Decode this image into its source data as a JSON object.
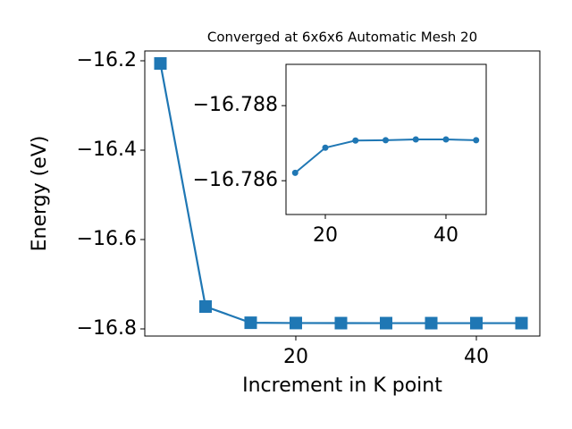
{
  "chart_data": [
    {
      "type": "line",
      "title": "Converged at 6x6x6 Automatic Mesh 20",
      "x_label": "Increment in K point",
      "y_label": "Energy (eV)",
      "x": [
        5,
        10,
        15,
        20,
        25,
        30,
        35,
        40,
        45
      ],
      "series": [
        {
          "name": "energy",
          "color": "#1f77b4",
          "marker": "square",
          "values": [
            -16.206,
            -16.75,
            -16.78621,
            -16.78688,
            -16.78707,
            -16.78708,
            -16.7871,
            -16.7871,
            -16.78708
          ]
        }
      ],
      "xlim": [
        3.27,
        47.03
      ],
      "ylim": [
        -16.816,
        -16.178
      ],
      "xticks": [
        20,
        40
      ],
      "yticks": [
        {
          "value": -16.2,
          "label": "−16.2"
        },
        {
          "value": -16.4,
          "label": "−16.4"
        },
        {
          "value": -16.6,
          "label": "−16.6"
        },
        {
          "value": -16.8,
          "label": "−16.8"
        }
      ]
    },
    {
      "type": "line",
      "x": [
        15,
        20,
        25,
        30,
        35,
        40,
        45
      ],
      "series": [
        {
          "name": "energy",
          "color": "#1f77b4",
          "marker": "circle",
          "values": [
            -16.78621,
            -16.78688,
            -16.78707,
            -16.78708,
            -16.7871,
            -16.7871,
            -16.78708
          ]
        }
      ],
      "xlim": [
        13.48,
        46.67
      ],
      "ylim": [
        -16.7851,
        -16.7891
      ],
      "xticks": [
        20,
        40
      ],
      "yticks": [
        {
          "value": -16.788,
          "label": "−16.788"
        },
        {
          "value": -16.786,
          "label": "−16.786"
        }
      ]
    }
  ]
}
